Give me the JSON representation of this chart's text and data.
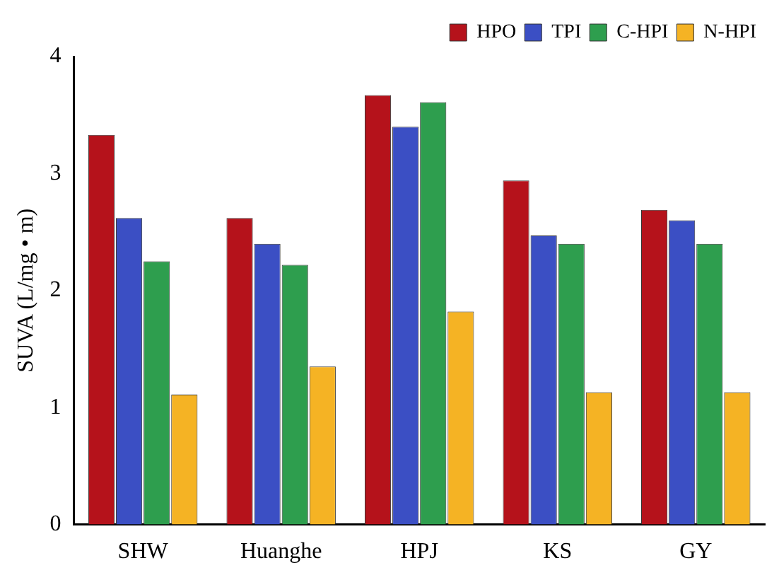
{
  "chart_data": {
    "type": "bar",
    "ylabel": "SUVA (L/mg • m)",
    "categories": [
      "SHW",
      "Huanghe",
      "HPJ",
      "KS",
      "GY"
    ],
    "series": [
      {
        "name": "HPO",
        "color": "#b5121b",
        "values": [
          3.33,
          2.62,
          3.67,
          2.94,
          2.69
        ]
      },
      {
        "name": "TPI",
        "color": "#3b4fc4",
        "values": [
          2.62,
          2.4,
          3.4,
          2.47,
          2.6
        ]
      },
      {
        "name": "C-HPI",
        "color": "#2e9e4e",
        "values": [
          2.25,
          2.22,
          3.61,
          2.4,
          2.4
        ]
      },
      {
        "name": "N-HPI",
        "color": "#f5b324",
        "values": [
          1.11,
          1.35,
          1.82,
          1.13,
          1.13
        ]
      }
    ],
    "ylim": [
      0,
      4
    ],
    "yticks": [
      0,
      1,
      2,
      3,
      4
    ],
    "grid": false,
    "legend": "top right"
  }
}
